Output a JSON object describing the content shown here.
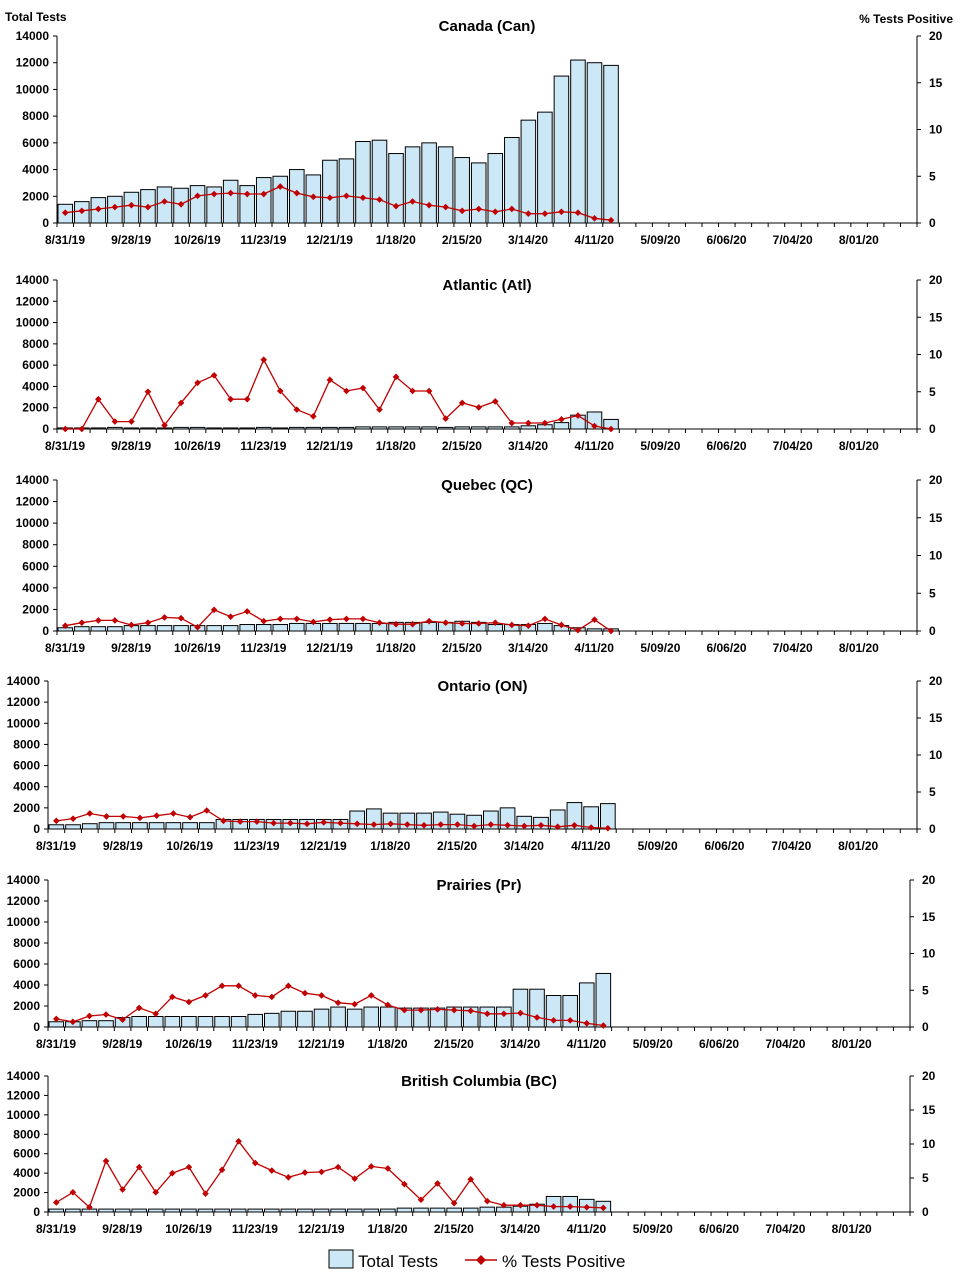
{
  "chart_data": {
    "type": "bar+line",
    "left_axis_title": "Total Tests",
    "right_axis_title": "% Tests Positive",
    "y_left_ticks": [
      "0",
      "2000",
      "4000",
      "6000",
      "8000",
      "10000",
      "12000",
      "14000"
    ],
    "y_right_ticks": [
      "0",
      "5",
      "10",
      "15",
      "20"
    ],
    "ylim_left": [
      0,
      14000
    ],
    "ylim_right": [
      0,
      20
    ],
    "x_tick_labels": [
      "8/31/19",
      "9/28/19",
      "10/26/19",
      "11/23/19",
      "12/21/19",
      "1/18/20",
      "2/15/20",
      "3/14/20",
      "4/11/20",
      "5/09/20",
      "6/06/20",
      "7/04/20",
      "8/01/20"
    ],
    "weeks_total": 52,
    "weeks_with_data": 34,
    "legend": {
      "bars": "Total Tests",
      "line": "% Tests Positive",
      "position": "bottom-center"
    },
    "colors": {
      "bar_fill": "#cce8f6",
      "bar_stroke": "#000000",
      "line": "#c00000"
    },
    "panels": [
      {
        "title": "Canada (Can)",
        "total_tests": [
          1400,
          1600,
          1900,
          2000,
          2300,
          2500,
          2700,
          2600,
          2800,
          2700,
          3200,
          2800,
          3400,
          3500,
          4000,
          3600,
          4700,
          4800,
          6100,
          6200,
          5200,
          5700,
          6000,
          5700,
          4900,
          4500,
          5200,
          6400,
          7700,
          8300,
          11000,
          12200,
          12000,
          11800
        ],
        "pct_positive": [
          1.1,
          1.3,
          1.5,
          1.7,
          1.9,
          1.7,
          2.3,
          2.0,
          2.9,
          3.1,
          3.2,
          3.1,
          3.1,
          3.9,
          3.2,
          2.8,
          2.7,
          2.9,
          2.7,
          2.5,
          1.8,
          2.3,
          1.9,
          1.7,
          1.3,
          1.5,
          1.2,
          1.5,
          1.0,
          1.0,
          1.2,
          1.1,
          0.5,
          0.3
        ]
      },
      {
        "title": "Atlantic (Atl)",
        "total_tests": [
          100,
          100,
          100,
          150,
          100,
          100,
          100,
          150,
          150,
          100,
          100,
          100,
          150,
          100,
          150,
          150,
          150,
          150,
          200,
          200,
          200,
          200,
          200,
          150,
          200,
          200,
          200,
          200,
          300,
          400,
          600,
          1300,
          1600,
          900
        ],
        "pct_positive": [
          0.0,
          0.0,
          4.0,
          1.0,
          1.0,
          5.0,
          0.5,
          3.5,
          6.2,
          7.2,
          4.0,
          4.0,
          9.3,
          5.1,
          2.6,
          1.7,
          6.6,
          5.1,
          5.5,
          2.6,
          7.0,
          5.1,
          5.1,
          1.4,
          3.5,
          2.9,
          3.7,
          0.8,
          0.8,
          0.8,
          1.3,
          1.8,
          0.4,
          0.0
        ]
      },
      {
        "title": "Quebec (QC)",
        "total_tests": [
          300,
          400,
          400,
          400,
          500,
          500,
          500,
          500,
          500,
          500,
          500,
          600,
          600,
          600,
          700,
          700,
          700,
          700,
          700,
          700,
          800,
          800,
          800,
          800,
          900,
          800,
          600,
          600,
          600,
          700,
          500,
          300,
          200,
          200
        ],
        "pct_positive": [
          0.7,
          1.1,
          1.4,
          1.4,
          0.8,
          1.1,
          1.8,
          1.7,
          0.5,
          2.8,
          1.9,
          2.6,
          1.3,
          1.6,
          1.6,
          1.2,
          1.5,
          1.6,
          1.6,
          1.1,
          0.9,
          0.9,
          1.3,
          1.1,
          1.0,
          1.0,
          1.1,
          0.8,
          0.7,
          1.6,
          0.8,
          0.1,
          1.5,
          0.0
        ]
      },
      {
        "title": "Ontario (ON)",
        "total_tests": [
          400,
          400,
          500,
          600,
          600,
          600,
          600,
          600,
          600,
          600,
          900,
          900,
          900,
          900,
          900,
          900,
          900,
          900,
          1700,
          1900,
          1500,
          1500,
          1500,
          1600,
          1400,
          1300,
          1700,
          2000,
          1200,
          1100,
          1800,
          2500,
          2100,
          2400
        ],
        "pct_positive": [
          1.1,
          1.4,
          2.1,
          1.7,
          1.7,
          1.5,
          1.8,
          2.1,
          1.6,
          2.5,
          1.1,
          1.0,
          1.0,
          0.8,
          0.8,
          0.7,
          0.9,
          0.8,
          0.7,
          0.6,
          0.7,
          0.6,
          0.5,
          0.6,
          0.6,
          0.4,
          0.6,
          0.5,
          0.4,
          0.5,
          0.3,
          0.5,
          0.2,
          0.1
        ]
      },
      {
        "title": "Prairies (Pr)",
        "total_tests": [
          500,
          500,
          600,
          600,
          900,
          1000,
          1000,
          1000,
          1000,
          1000,
          1000,
          1000,
          1200,
          1300,
          1500,
          1500,
          1700,
          1900,
          1700,
          1900,
          1900,
          1800,
          1800,
          1800,
          1900,
          1900,
          1900,
          1900,
          3600,
          3600,
          3000,
          3000,
          4200,
          5100
        ],
        "pct_positive": [
          1.1,
          0.7,
          1.5,
          1.7,
          1.0,
          2.6,
          1.8,
          4.1,
          3.4,
          4.3,
          5.6,
          5.6,
          4.3,
          4.1,
          5.6,
          4.6,
          4.3,
          3.3,
          3.1,
          4.3,
          3.0,
          2.3,
          2.3,
          2.4,
          2.3,
          2.2,
          1.8,
          1.8,
          1.9,
          1.3,
          0.9,
          0.9,
          0.5,
          0.2
        ]
      },
      {
        "title": "British Columbia (BC)",
        "total_tests": [
          300,
          300,
          300,
          300,
          300,
          300,
          300,
          300,
          300,
          300,
          300,
          300,
          300,
          300,
          300,
          300,
          300,
          300,
          300,
          300,
          300,
          400,
          400,
          400,
          400,
          400,
          500,
          500,
          600,
          800,
          1600,
          1600,
          1300,
          1100
        ],
        "pct_positive": [
          1.4,
          2.9,
          0.7,
          7.5,
          3.3,
          6.6,
          2.9,
          5.7,
          6.6,
          2.7,
          6.2,
          10.4,
          7.2,
          6.1,
          5.1,
          5.8,
          5.9,
          6.6,
          4.9,
          6.7,
          6.4,
          4.1,
          1.8,
          4.2,
          1.3,
          4.8,
          1.6,
          1.0,
          1.0,
          1.0,
          0.8,
          0.8,
          0.7,
          0.6
        ]
      }
    ]
  }
}
